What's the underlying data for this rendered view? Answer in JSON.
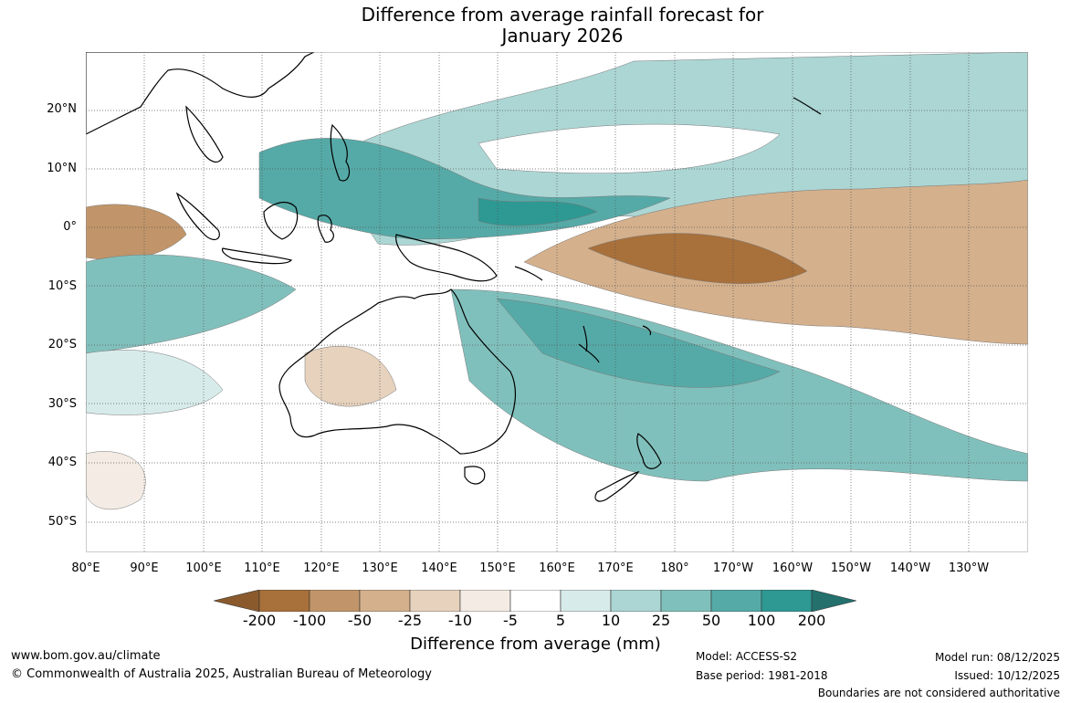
{
  "title_line1": "Difference from average rainfall forecast for",
  "title_line2": "January 2026",
  "lat_labels": [
    "20°N",
    "10°N",
    "0°",
    "10°S",
    "20°S",
    "30°S",
    "40°S",
    "50°S"
  ],
  "lon_labels": [
    "80°E",
    "90°E",
    "100°E",
    "110°E",
    "120°E",
    "130°E",
    "140°E",
    "150°E",
    "160°E",
    "170°E",
    "180°",
    "170°W",
    "160°W",
    "150°W",
    "140°W",
    "130°W"
  ],
  "colorbar": {
    "title": "Difference from average (mm)",
    "ticks": [
      "-200",
      "-100",
      "-50",
      "-25",
      "-10",
      "-5",
      "5",
      "10",
      "25",
      "50",
      "100",
      "200"
    ],
    "colors": [
      "#8a5a2c",
      "#a8703a",
      "#c19569",
      "#d4b08c",
      "#e6d2bd",
      "#f4ece4",
      "#ffffff",
      "#d7ebea",
      "#abd6d4",
      "#80c0bc",
      "#55aaa7",
      "#2e9893",
      "#23706d"
    ]
  },
  "colors": {
    "land_border": "#000000",
    "grid": "#555555"
  },
  "footer": {
    "website": "www.bom.gov.au/climate",
    "copyright": "© Commonwealth of Australia 2025, Australian Bureau of Meteorology",
    "model": "Model: ACCESS-S2",
    "base_period": "Base period: 1981-2018",
    "model_run": "Model run: 08/12/2025",
    "issued": "Issued: 10/12/2025",
    "boundaries": "Boundaries are not considered authoritative"
  }
}
